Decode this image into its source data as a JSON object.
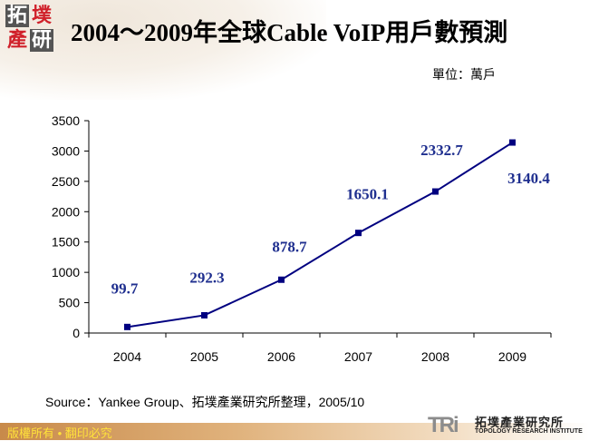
{
  "header": {
    "logo_text": [
      "拓",
      "墣",
      "產",
      "研"
    ],
    "title": "2004～2009年全球Cable VoIP用戶數預測",
    "unit": "單位：萬戶"
  },
  "footer": {
    "source": "Source：Yankee Group、拓墣產業研究所整理，2005/10",
    "copyright": "版權所有 • 翻印必究",
    "brand_mark": "TRi",
    "brand_cn": "拓墣產業研究所",
    "brand_en": "TOPOLOGY RESEARCH INSTITUTE"
  },
  "colors": {
    "series": "#000080",
    "label": "#1f2f8f",
    "axis": "#000000"
  },
  "chart_data": {
    "type": "line",
    "title": "2004～2009年全球Cable VoIP用戶數預測",
    "ylabel": "單位：萬戶",
    "categories": [
      "2004",
      "2005",
      "2006",
      "2007",
      "2008",
      "2009"
    ],
    "values": [
      99.7,
      292.3,
      878.7,
      1650.1,
      2332.7,
      3140.4
    ],
    "data_labels": [
      "99.7",
      "292.3",
      "878.7",
      "1650.1",
      "2332.7",
      "3140.4"
    ],
    "ylim": [
      0,
      3500
    ],
    "yticks": [
      "0",
      "500",
      "1000",
      "1500",
      "2000",
      "2500",
      "3000",
      "3500"
    ],
    "grid": false,
    "marker": "square"
  }
}
